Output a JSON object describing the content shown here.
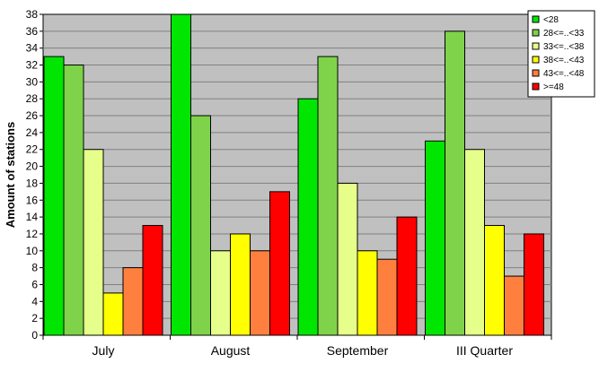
{
  "chart_data": {
    "type": "bar",
    "categories": [
      "July",
      "August",
      "September",
      "III Quarter"
    ],
    "series": [
      {
        "name": "<28",
        "color": "#00e600",
        "values": [
          33,
          38,
          28,
          23
        ]
      },
      {
        "name": "28<=..<33",
        "color": "#7fd34a",
        "values": [
          32,
          26,
          33,
          36
        ]
      },
      {
        "name": "33<=..<38",
        "color": "#e6ff8a",
        "values": [
          22,
          10,
          18,
          22
        ]
      },
      {
        "name": "38<=..<43",
        "color": "#ffff00",
        "values": [
          5,
          12,
          10,
          13
        ]
      },
      {
        "name": "43<=..<48",
        "color": "#ff7f3f",
        "values": [
          8,
          10,
          9,
          7
        ]
      },
      {
        "name": ">=48",
        "color": "#ff0000",
        "values": [
          13,
          17,
          14,
          12
        ]
      }
    ],
    "title": "",
    "xlabel": "",
    "ylabel": "Amount of stations",
    "ylim": [
      0,
      38
    ],
    "ytick_step": 2,
    "grid": true,
    "legend": "top-right",
    "plot_background": "#c0c0c0"
  }
}
